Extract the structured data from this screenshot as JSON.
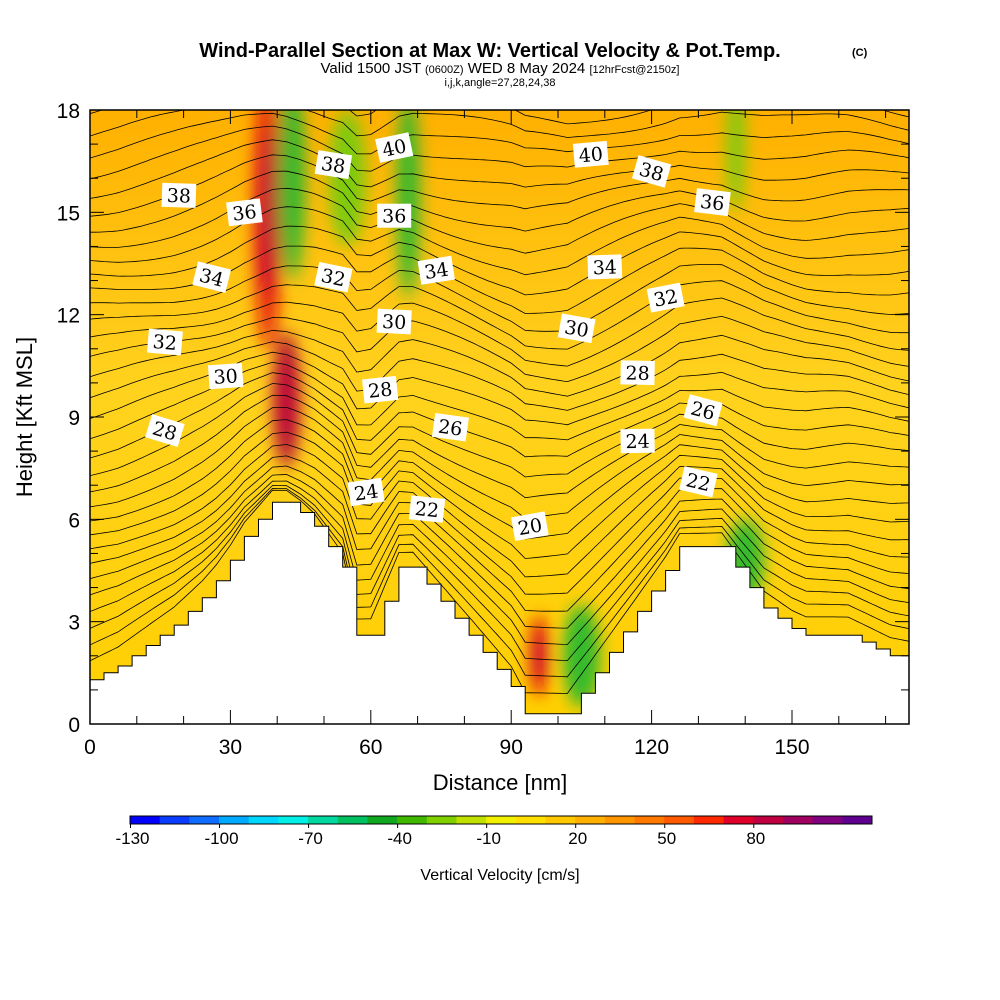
{
  "chart_data": {
    "type": "heatmap",
    "title": "Wind-Parallel Section at Max W: Vertical Velocity & Pot.Temp.",
    "title_mark": "(C)",
    "subtitle": {
      "valid": "Valid 1500 JST",
      "utc": "(0600Z)",
      "date": "WED 8 May 2024",
      "fcst": "[12hrFcst@2150z]"
    },
    "params": "i,j,k,angle=27,28,24,38",
    "xlabel": "Distance [nm]",
    "ylabel": "Height [Kft MSL]",
    "xlim": [
      0,
      175
    ],
    "ylim": [
      0,
      18
    ],
    "x_ticks": [
      "0",
      "30",
      "60",
      "90",
      "120",
      "150"
    ],
    "y_ticks": [
      "0",
      "3",
      "6",
      "9",
      "12",
      "15",
      "18"
    ],
    "terrain": {
      "x": [
        0,
        3,
        6,
        9,
        12,
        15,
        18,
        21,
        24,
        27,
        30,
        33,
        36,
        39,
        42,
        45,
        48,
        51,
        54,
        57,
        60,
        63,
        66,
        69,
        72,
        75,
        78,
        81,
        84,
        87,
        90,
        93,
        96,
        99,
        102,
        105,
        108,
        111,
        114,
        117,
        120,
        123,
        126,
        129,
        132,
        135,
        138,
        141,
        144,
        147,
        150,
        153,
        156,
        159,
        162,
        165,
        168,
        171,
        175
      ],
      "height": [
        1.3,
        1.5,
        1.7,
        2.0,
        2.3,
        2.6,
        2.9,
        3.3,
        3.7,
        4.2,
        4.8,
        5.5,
        6.0,
        6.5,
        6.5,
        6.2,
        5.8,
        5.2,
        4.6,
        2.6,
        2.6,
        3.6,
        4.6,
        4.6,
        4.1,
        3.6,
        3.1,
        2.6,
        2.1,
        1.6,
        1.1,
        0.3,
        0.3,
        0.3,
        0.3,
        0.9,
        1.5,
        2.1,
        2.7,
        3.3,
        3.9,
        4.5,
        5.2,
        5.2,
        5.2,
        5.2,
        4.6,
        4.0,
        3.4,
        3.1,
        2.8,
        2.6,
        2.6,
        2.6,
        2.6,
        2.4,
        2.2,
        2.0,
        1.9
      ]
    },
    "isentrope_labels": [
      {
        "text": "40",
        "x": 65,
        "y": 16.9
      },
      {
        "text": "40",
        "x": 107,
        "y": 16.7
      },
      {
        "text": "38",
        "x": 19,
        "y": 15.5
      },
      {
        "text": "38",
        "x": 52,
        "y": 16.4
      },
      {
        "text": "38",
        "x": 120,
        "y": 16.2
      },
      {
        "text": "36",
        "x": 33,
        "y": 15.0
      },
      {
        "text": "36",
        "x": 65,
        "y": 14.9
      },
      {
        "text": "36",
        "x": 133,
        "y": 15.3
      },
      {
        "text": "34",
        "x": 26,
        "y": 13.1
      },
      {
        "text": "34",
        "x": 74,
        "y": 13.3
      },
      {
        "text": "34",
        "x": 110,
        "y": 13.4
      },
      {
        "text": "32",
        "x": 16,
        "y": 11.2
      },
      {
        "text": "32",
        "x": 52,
        "y": 13.1
      },
      {
        "text": "32",
        "x": 123,
        "y": 12.5
      },
      {
        "text": "30",
        "x": 29,
        "y": 10.2
      },
      {
        "text": "30",
        "x": 65,
        "y": 11.8
      },
      {
        "text": "30",
        "x": 104,
        "y": 11.6
      },
      {
        "text": "28",
        "x": 16,
        "y": 8.6
      },
      {
        "text": "28",
        "x": 62,
        "y": 9.8
      },
      {
        "text": "28",
        "x": 117,
        "y": 10.3
      },
      {
        "text": "26",
        "x": 77,
        "y": 8.7
      },
      {
        "text": "26",
        "x": 131,
        "y": 9.2
      },
      {
        "text": "24",
        "x": 59,
        "y": 6.8
      },
      {
        "text": "24",
        "x": 117,
        "y": 8.3
      },
      {
        "text": "22",
        "x": 72,
        "y": 6.3
      },
      {
        "text": "22",
        "x": 130,
        "y": 7.1
      },
      {
        "text": "20",
        "x": 94,
        "y": 5.8
      }
    ],
    "velocity_features": [
      {
        "x": 38,
        "z": 15,
        "sx": 3,
        "sz": 4,
        "w": 60
      },
      {
        "x": 42,
        "z": 9.5,
        "sx": 3,
        "sz": 2,
        "w": 90
      },
      {
        "x": 43,
        "z": 16,
        "sx": 3,
        "sz": 3,
        "w": -40
      },
      {
        "x": 55,
        "z": 16,
        "sx": 4,
        "sz": 2,
        "w": -30
      },
      {
        "x": 68,
        "z": 15.5,
        "sx": 2.5,
        "sz": 3,
        "w": -40
      },
      {
        "x": 96,
        "z": 2,
        "sx": 2,
        "sz": 1.2,
        "w": 70
      },
      {
        "x": 105,
        "z": 2,
        "sx": 4,
        "sz": 1.5,
        "w": -40
      },
      {
        "x": 140,
        "z": 4.8,
        "sx": 4,
        "sz": 1.2,
        "w": -40
      },
      {
        "x": 138,
        "z": 17,
        "sx": 2,
        "sz": 2,
        "w": -30
      }
    ],
    "colorbar": {
      "label": "Vertical Velocity [cm/s]",
      "tick_labels": [
        "-130",
        "-100",
        "-70",
        "-40",
        "-10",
        "20",
        "50",
        "80"
      ],
      "colors": [
        "#0000ff",
        "#0a3cff",
        "#0f6cff",
        "#00aaff",
        "#00d7ff",
        "#00f0e8",
        "#00d8a0",
        "#00c060",
        "#10a820",
        "#40b800",
        "#80d000",
        "#c0e000",
        "#f0f000",
        "#ffe000",
        "#ffc800",
        "#ffb000",
        "#ff9600",
        "#ff7800",
        "#ff5a00",
        "#ff2800",
        "#e0002a",
        "#c00040",
        "#a00060",
        "#800080",
        "#600090"
      ]
    },
    "colors": {
      "background_yellow": "#ffd21e",
      "strong_up": "#d01238",
      "down_green": "#2ebc3c"
    }
  }
}
